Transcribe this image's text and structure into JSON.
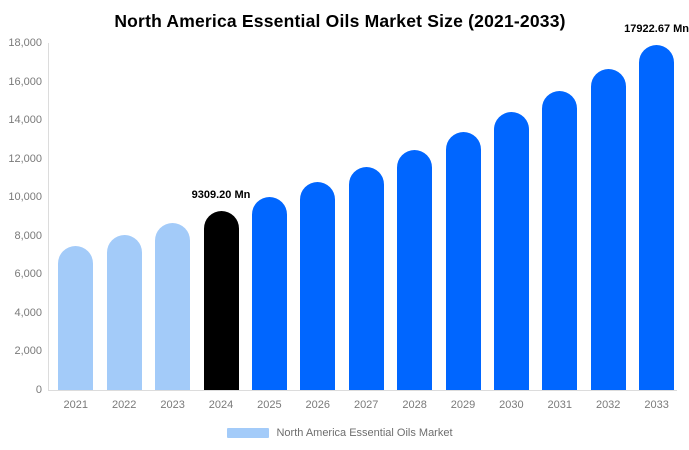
{
  "title": "North America Essential Oils Market Size (2021-2033)",
  "colors": {
    "background": "#ffffff",
    "historical_bar": "#a3cbf9",
    "highlight_bar": "#000000",
    "forecast_bar": "#0066ff",
    "axis_text": "#7a7a7a",
    "legend_text": "#6e6e6e",
    "axis_line": "#dcdcdc",
    "annotation_text": "#000000"
  },
  "chart_data": {
    "type": "bar",
    "title": "North America Essential Oils Market Size (2021-2033)",
    "unit": "Mn",
    "categories": [
      "2021",
      "2022",
      "2023",
      "2024",
      "2025",
      "2026",
      "2027",
      "2028",
      "2029",
      "2030",
      "2031",
      "2032",
      "2033"
    ],
    "values": [
      7480,
      8050,
      8660,
      9309.2,
      10010,
      10770,
      11580,
      12460,
      13400,
      14410,
      15500,
      16670,
      17922.67
    ],
    "bar_colors": [
      "#a3cbf9",
      "#a3cbf9",
      "#a3cbf9",
      "#000000",
      "#0066ff",
      "#0066ff",
      "#0066ff",
      "#0066ff",
      "#0066ff",
      "#0066ff",
      "#0066ff",
      "#0066ff",
      "#0066ff"
    ],
    "annotations": [
      {
        "index": 3,
        "text": "9309.20 Mn"
      },
      {
        "index": 12,
        "text": "17922.67 Mn"
      }
    ],
    "ylim": [
      0,
      18000
    ],
    "ytick_labels": [
      "0",
      "2,000",
      "4,000",
      "6,000",
      "8,000",
      "10,000",
      "12,000",
      "14,000",
      "16,000",
      "18,000"
    ],
    "grid": false,
    "legend_position": "bottom",
    "legend_entries": [
      {
        "label": "North America Essential Oils Market",
        "color": "#a3cbf9"
      }
    ]
  }
}
